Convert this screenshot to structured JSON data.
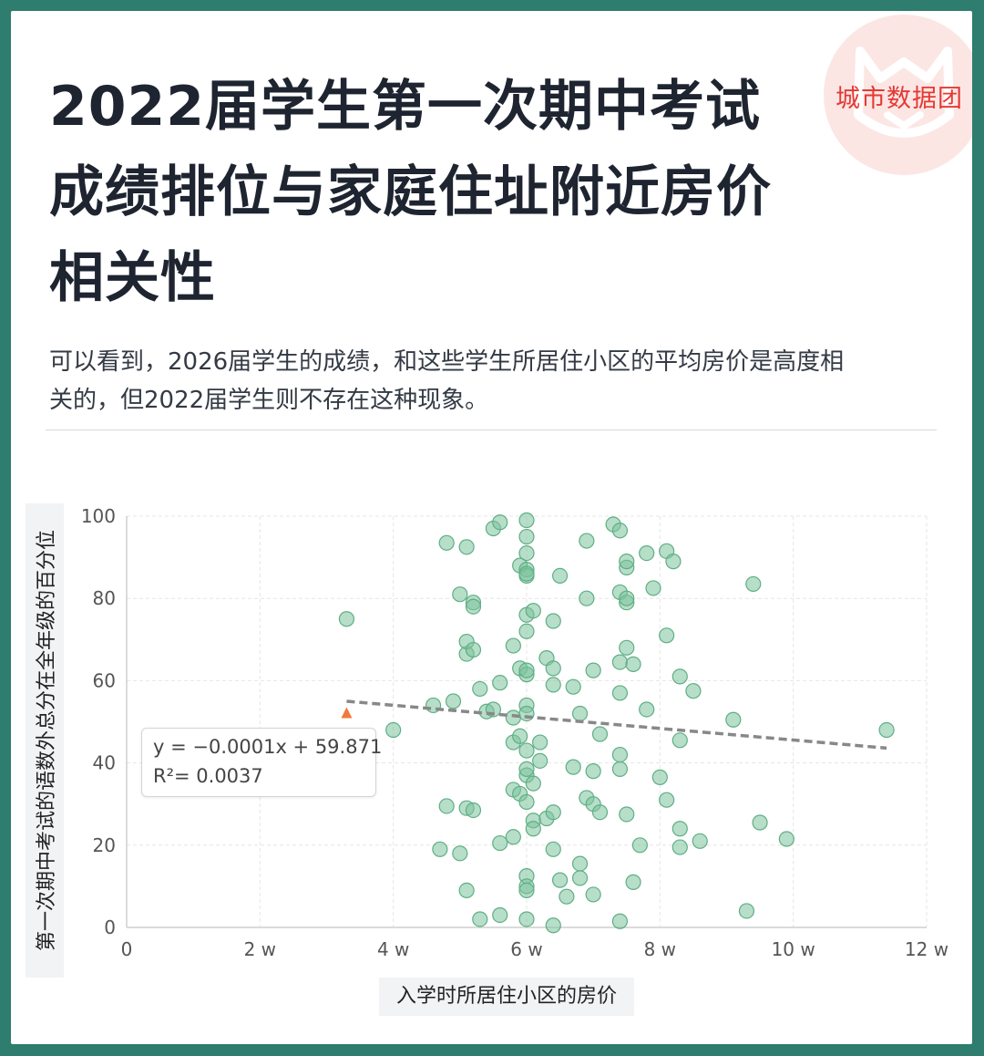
{
  "header": {
    "brand": "城市数据团",
    "title_lines": [
      "2022届学生第一次期中考试",
      "成绩排位与家庭住址附近房价",
      "相关性"
    ],
    "subtitle_lines": [
      "可以看到，2026届学生的成绩，和这些学生所居住小区的平均房价是高度相",
      "关的，但2022届学生则不存在这种现象。"
    ]
  },
  "chart_data": {
    "type": "scatter",
    "xlabel": "入学时所居住小区的房价",
    "ylabel": "第一次期中考试的语数外总分在全年级的百分位",
    "xlim": [
      0,
      120000
    ],
    "ylim": [
      0,
      100
    ],
    "x_ticks": [
      0,
      20000,
      40000,
      60000,
      80000,
      100000,
      120000
    ],
    "x_tick_labels": [
      "0",
      "2 w",
      "4 w",
      "6 w",
      "8 w",
      "10 w",
      "12 w"
    ],
    "y_ticks": [
      0,
      20,
      40,
      60,
      80,
      100
    ],
    "y_tick_labels": [
      "0",
      "20",
      "40",
      "60",
      "80",
      "100"
    ],
    "grid": true,
    "point_color": "#7cc39c",
    "trendline_color": "#888888",
    "marker_color": "#f07a3a",
    "trendline": {
      "equation": "y = −0.0001x + 59.871",
      "r2_label": "R²= 0.0037",
      "x_range": [
        33000,
        114000
      ],
      "y_range": [
        55,
        43.6
      ]
    },
    "marker": {
      "x": 33000,
      "y": 52
    },
    "points": [
      [
        33000,
        75
      ],
      [
        40000,
        48
      ],
      [
        46000,
        54
      ],
      [
        47000,
        19
      ],
      [
        48000,
        29.5
      ],
      [
        48000,
        93.5
      ],
      [
        49000,
        55
      ],
      [
        50000,
        81
      ],
      [
        50000,
        18
      ],
      [
        51000,
        29
      ],
      [
        51000,
        66.5
      ],
      [
        51000,
        92.5
      ],
      [
        51000,
        69.5
      ],
      [
        51000,
        9
      ],
      [
        52000,
        79
      ],
      [
        52000,
        28.5
      ],
      [
        52000,
        67.5
      ],
      [
        52000,
        78
      ],
      [
        53000,
        2
      ],
      [
        53000,
        58
      ],
      [
        54000,
        52.5
      ],
      [
        55000,
        53
      ],
      [
        55000,
        97
      ],
      [
        56000,
        59.5
      ],
      [
        56000,
        20.5
      ],
      [
        56000,
        3
      ],
      [
        56000,
        98.5
      ],
      [
        58000,
        22
      ],
      [
        58000,
        45
      ],
      [
        58000,
        33.5
      ],
      [
        58000,
        68.5
      ],
      [
        58000,
        51
      ],
      [
        59000,
        88
      ],
      [
        59000,
        63
      ],
      [
        59000,
        32.5
      ],
      [
        59000,
        46.5
      ],
      [
        60000,
        76
      ],
      [
        60000,
        72
      ],
      [
        60000,
        54
      ],
      [
        60000,
        12.5
      ],
      [
        60000,
        87
      ],
      [
        60000,
        85.5
      ],
      [
        60000,
        91
      ],
      [
        60000,
        95
      ],
      [
        60000,
        99
      ],
      [
        60000,
        61.5
      ],
      [
        60000,
        37
      ],
      [
        60000,
        30.5
      ],
      [
        60000,
        52
      ],
      [
        60000,
        10
      ],
      [
        60000,
        2
      ],
      [
        60000,
        38.5
      ],
      [
        60000,
        43
      ],
      [
        60000,
        86
      ],
      [
        60000,
        62.5
      ],
      [
        60000,
        9
      ],
      [
        61000,
        77
      ],
      [
        61000,
        35
      ],
      [
        61000,
        26
      ],
      [
        61000,
        24
      ],
      [
        62000,
        40.5
      ],
      [
        62000,
        45
      ],
      [
        63000,
        65.5
      ],
      [
        63000,
        26.5
      ],
      [
        64000,
        63
      ],
      [
        64000,
        59
      ],
      [
        64000,
        74.5
      ],
      [
        64000,
        28
      ],
      [
        64000,
        19
      ],
      [
        64000,
        0.5
      ],
      [
        65000,
        85.5
      ],
      [
        65000,
        11.5
      ],
      [
        66000,
        7.5
      ],
      [
        67000,
        39
      ],
      [
        67000,
        58.5
      ],
      [
        68000,
        52
      ],
      [
        68000,
        15.5
      ],
      [
        68000,
        12
      ],
      [
        69000,
        94
      ],
      [
        69000,
        80
      ],
      [
        69000,
        31.5
      ],
      [
        70000,
        62.5
      ],
      [
        70000,
        38
      ],
      [
        70000,
        8
      ],
      [
        70000,
        30
      ],
      [
        71000,
        28
      ],
      [
        71000,
        47
      ],
      [
        73000,
        98
      ],
      [
        74000,
        96.5
      ],
      [
        74000,
        81.5
      ],
      [
        74000,
        64.5
      ],
      [
        74000,
        57
      ],
      [
        74000,
        42
      ],
      [
        74000,
        38.5
      ],
      [
        74000,
        1.5
      ],
      [
        75000,
        27.5
      ],
      [
        75000,
        87.5
      ],
      [
        75000,
        89
      ],
      [
        75000,
        79
      ],
      [
        75000,
        68
      ],
      [
        75000,
        80
      ],
      [
        76000,
        64
      ],
      [
        76000,
        11
      ],
      [
        77000,
        20
      ],
      [
        78000,
        91
      ],
      [
        78000,
        53
      ],
      [
        79000,
        82.5
      ],
      [
        80000,
        36.5
      ],
      [
        81000,
        71
      ],
      [
        81000,
        91.5
      ],
      [
        81000,
        31
      ],
      [
        82000,
        89
      ],
      [
        83000,
        61
      ],
      [
        83000,
        45.5
      ],
      [
        83000,
        24
      ],
      [
        83000,
        19.5
      ],
      [
        85000,
        57.5
      ],
      [
        86000,
        21
      ],
      [
        91000,
        50.5
      ],
      [
        93000,
        4
      ],
      [
        94000,
        83.5
      ],
      [
        95000,
        25.5
      ],
      [
        99000,
        21.5
      ],
      [
        114000,
        48
      ]
    ]
  }
}
